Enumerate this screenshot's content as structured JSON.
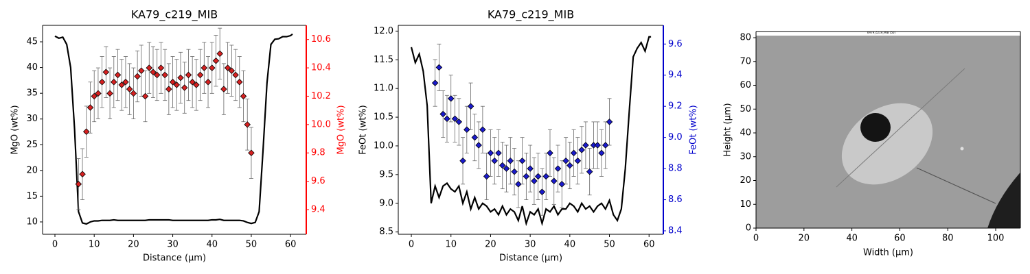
{
  "chart_data": [
    {
      "type": "line",
      "title": "KA79_c219_MIB",
      "xlabel": "Distance (µm)",
      "ylabel": "MgO (wt%)",
      "y2label": "MgO (wt%)",
      "y2color": "#ff0000",
      "xlim": [
        -3.15,
        64
      ],
      "xticks": [
        0,
        10,
        20,
        30,
        40,
        50,
        60
      ],
      "ylim": [
        7.6,
        48.2
      ],
      "yticks": [
        10,
        15,
        20,
        25,
        30,
        35,
        40,
        45
      ],
      "y2lim": [
        9.226,
        10.7
      ],
      "y2ticks": [
        9.4,
        9.6,
        9.8,
        {
          "value": 10,
          "label": "10.0"
        },
        10.2,
        10.4,
        10.6
      ],
      "series": [
        {
          "color": "#000000",
          "x": [
            0,
            1,
            2,
            3,
            4,
            5,
            6,
            7,
            8,
            9,
            10,
            11,
            12,
            13,
            14,
            15,
            16,
            17,
            18,
            19,
            20,
            21,
            22,
            23,
            24,
            25,
            26,
            27,
            28,
            29,
            30,
            31,
            32,
            33,
            34,
            35,
            36,
            37,
            38,
            39,
            40,
            41,
            42,
            43,
            44,
            45,
            46,
            47,
            48,
            49,
            50,
            51,
            52,
            53,
            54,
            55,
            56,
            57,
            58,
            59,
            60,
            60.5
          ],
          "values": [
            46.1,
            45.7,
            45.9,
            44.5,
            40,
            28,
            12,
            9.8,
            9.6,
            10,
            10.2,
            10.2,
            10.3,
            10.3,
            10.3,
            10.4,
            10.3,
            10.3,
            10.3,
            10.3,
            10.3,
            10.3,
            10.3,
            10.3,
            10.4,
            10.4,
            10.4,
            10.4,
            10.4,
            10.4,
            10.3,
            10.3,
            10.3,
            10.3,
            10.3,
            10.3,
            10.3,
            10.3,
            10.3,
            10.3,
            10.4,
            10.4,
            10.5,
            10.3,
            10.3,
            10.3,
            10.3,
            10.3,
            10.2,
            9.9,
            9.7,
            9.9,
            12,
            24,
            37,
            44.5,
            45.5,
            45.6,
            46,
            46,
            46.2,
            46.5
          ]
        },
        {
          "axis": "y2",
          "marker": "diamond",
          "color": "#d62020",
          "x": [
            6,
            7,
            8,
            9,
            10,
            11,
            12,
            13,
            14,
            15,
            16,
            17,
            18,
            19,
            20,
            21,
            22,
            23,
            24,
            25,
            26,
            27,
            28,
            29,
            30,
            31,
            32,
            33,
            34,
            35,
            36,
            37,
            38,
            39,
            40,
            41,
            42,
            43,
            44,
            45,
            46,
            47,
            48,
            49,
            50
          ],
          "values": [
            9.58,
            9.65,
            9.95,
            10.12,
            10.2,
            10.22,
            10.3,
            10.37,
            10.22,
            10.3,
            10.35,
            10.28,
            10.3,
            10.25,
            10.22,
            10.34,
            10.38,
            10.2,
            10.4,
            10.37,
            10.35,
            10.4,
            10.35,
            10.25,
            10.3,
            10.28,
            10.33,
            10.26,
            10.35,
            10.3,
            10.28,
            10.35,
            10.4,
            10.3,
            10.4,
            10.45,
            10.5,
            10.25,
            10.4,
            10.38,
            10.35,
            10.3,
            10.2,
            10.0,
            9.8
          ],
          "errors": [
            0.18,
            0.18,
            0.18,
            0.18,
            0.18,
            0.18,
            0.18,
            0.18,
            0.18,
            0.18,
            0.18,
            0.18,
            0.18,
            0.18,
            0.18,
            0.18,
            0.18,
            0.18,
            0.18,
            0.18,
            0.18,
            0.18,
            0.18,
            0.18,
            0.18,
            0.18,
            0.18,
            0.18,
            0.18,
            0.18,
            0.18,
            0.18,
            0.18,
            0.18,
            0.18,
            0.18,
            0.18,
            0.18,
            0.18,
            0.18,
            0.18,
            0.18,
            0.18,
            0.18,
            0.18
          ]
        }
      ]
    },
    {
      "type": "line",
      "title": "KA79_c219_MIB",
      "xlabel": "Distance (µm)",
      "ylabel": "FeOt (wt%)",
      "y2label": "FeOt (wt%)",
      "y2color": "#0000cc",
      "xlim": [
        -3.3,
        63.6
      ],
      "xticks": [
        0,
        10,
        20,
        30,
        40,
        50,
        60
      ],
      "ylim": [
        8.46,
        12.1
      ],
      "yticks": [
        8.5,
        {
          "value": 9,
          "label": "9.0"
        },
        9.5,
        {
          "value": 10,
          "label": "10.0"
        },
        10.5,
        {
          "value": 11,
          "label": "11.0"
        },
        11.5,
        {
          "value": 12,
          "label": "12.0"
        }
      ],
      "y2lim": [
        8.378,
        9.72
      ],
      "y2ticks": [
        8.4,
        8.6,
        8.8,
        {
          "value": 9,
          "label": "9.0"
        },
        9.2,
        9.4,
        9.6
      ],
      "series": [
        {
          "color": "#000000",
          "x": [
            0,
            1,
            2,
            3,
            4,
            5,
            6,
            7,
            8,
            9,
            10,
            11,
            12,
            13,
            14,
            15,
            16,
            17,
            18,
            19,
            20,
            21,
            22,
            23,
            24,
            25,
            26,
            27,
            28,
            29,
            30,
            31,
            32,
            33,
            34,
            35,
            36,
            37,
            38,
            39,
            40,
            41,
            42,
            43,
            44,
            45,
            46,
            47,
            48,
            49,
            50,
            51,
            52,
            53,
            54,
            55,
            56,
            57,
            58,
            59,
            60,
            60.5
          ],
          "values": [
            11.72,
            11.45,
            11.6,
            11.3,
            10.7,
            9.0,
            9.3,
            9.1,
            9.3,
            9.35,
            9.25,
            9.2,
            9.3,
            9.0,
            9.2,
            8.9,
            9.1,
            8.9,
            9.0,
            8.95,
            8.85,
            8.9,
            8.8,
            8.95,
            8.8,
            8.9,
            8.85,
            8.7,
            8.95,
            8.65,
            8.85,
            8.8,
            8.9,
            8.65,
            8.9,
            8.85,
            8.95,
            8.8,
            8.9,
            8.9,
            9.0,
            8.95,
            8.85,
            9.0,
            8.9,
            8.95,
            8.85,
            8.95,
            9.0,
            8.9,
            9.05,
            8.8,
            8.7,
            8.9,
            9.6,
            10.6,
            11.55,
            11.7,
            11.8,
            11.65,
            11.9,
            11.9
          ]
        },
        {
          "axis": "y2",
          "marker": "diamond",
          "color": "#1a1acc",
          "x": [
            6,
            7,
            8,
            9,
            10,
            11,
            12,
            13,
            14,
            15,
            16,
            17,
            18,
            19,
            20,
            21,
            22,
            23,
            24,
            25,
            26,
            27,
            28,
            29,
            30,
            31,
            32,
            33,
            34,
            35,
            36,
            37,
            38,
            39,
            40,
            41,
            42,
            43,
            44,
            45,
            46,
            47,
            48,
            49,
            50
          ],
          "values": [
            9.35,
            9.45,
            9.15,
            9.12,
            9.25,
            9.12,
            9.1,
            8.85,
            9.05,
            9.2,
            9.0,
            8.95,
            9.05,
            8.75,
            8.9,
            8.85,
            8.9,
            8.82,
            8.8,
            8.85,
            8.78,
            8.7,
            8.85,
            8.75,
            8.8,
            8.72,
            8.75,
            8.65,
            8.75,
            8.9,
            8.72,
            8.8,
            8.7,
            8.85,
            8.82,
            8.9,
            8.85,
            8.92,
            8.95,
            8.78,
            8.95,
            8.95,
            8.9,
            8.95,
            9.1
          ],
          "errors": [
            0.15,
            0.15,
            0.15,
            0.15,
            0.15,
            0.15,
            0.15,
            0.15,
            0.15,
            0.15,
            0.15,
            0.15,
            0.15,
            0.15,
            0.15,
            0.15,
            0.15,
            0.15,
            0.15,
            0.15,
            0.15,
            0.15,
            0.15,
            0.15,
            0.15,
            0.15,
            0.15,
            0.15,
            0.15,
            0.15,
            0.15,
            0.15,
            0.15,
            0.15,
            0.15,
            0.15,
            0.15,
            0.15,
            0.15,
            0.15,
            0.15,
            0.15,
            0.15,
            0.15,
            0.15
          ]
        }
      ]
    },
    {
      "type": "image",
      "xlabel": "Width (µm)",
      "ylabel": "Height (µm)",
      "image_caption": "KA79_c219_MIB (50)",
      "xlim": [
        0,
        110.3
      ],
      "xticks": [
        0,
        20,
        40,
        60,
        80,
        100
      ],
      "ylim": [
        0,
        82.6
      ],
      "yticks": [
        0,
        10,
        20,
        30,
        40,
        50,
        60,
        70,
        80
      ]
    }
  ]
}
